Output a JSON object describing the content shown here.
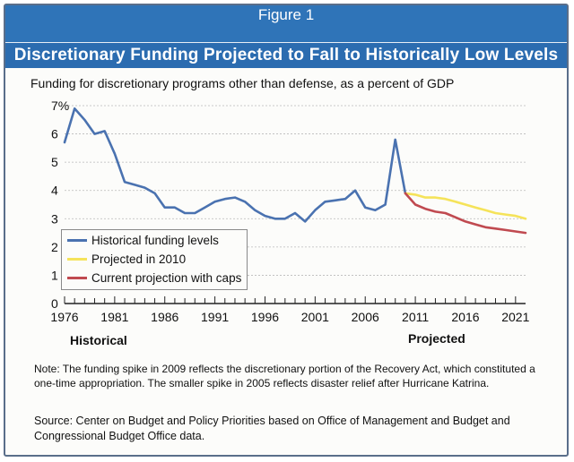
{
  "figure_label": "Figure 1",
  "title": "Discretionary Funding Projected to Fall to Historically Low Levels",
  "subtitle": "Funding for discretionary programs other than defense, as a percent of GDP",
  "historical_label": "Historical",
  "projected_label": "Projected",
  "note": "Note: The funding spike in 2009 reflects the discretionary portion of the Recovery Act, which constituted a one-time appropriation.  The smaller spike in 2005 reflects disaster relief after Hurricane Katrina.",
  "source": "Source: Center on Budget and Policy Priorities based on Office of Management and Budget and Congressional Budget Office data.",
  "chart_data": {
    "type": "line",
    "xlim": [
      1976,
      2022
    ],
    "ylim": [
      0,
      7
    ],
    "x_ticks": [
      1976,
      1981,
      1986,
      1991,
      1996,
      2001,
      2006,
      2011,
      2016,
      2021
    ],
    "y_ticks": [
      0,
      1,
      2,
      3,
      4,
      5,
      6,
      7
    ],
    "y_tick_labels": [
      "0",
      "1",
      "2",
      "3",
      "4",
      "5",
      "6",
      "7%"
    ],
    "grid": true,
    "legend_position": "bottom-left",
    "series": [
      {
        "name": "Historical funding levels",
        "color": "#4a72b0",
        "x": [
          1976,
          1977,
          1978,
          1979,
          1980,
          1981,
          1982,
          1983,
          1984,
          1985,
          1986,
          1987,
          1988,
          1989,
          1990,
          1991,
          1992,
          1993,
          1994,
          1995,
          1996,
          1997,
          1998,
          1999,
          2000,
          2001,
          2002,
          2003,
          2004,
          2005,
          2006,
          2007,
          2008,
          2009,
          2010
        ],
        "y": [
          5.7,
          6.9,
          6.5,
          6.0,
          6.1,
          5.3,
          4.3,
          4.2,
          4.1,
          3.9,
          3.4,
          3.4,
          3.2,
          3.2,
          3.4,
          3.6,
          3.7,
          3.75,
          3.6,
          3.3,
          3.1,
          3.0,
          3.0,
          3.2,
          2.9,
          3.3,
          3.6,
          3.65,
          3.7,
          4.0,
          3.4,
          3.3,
          3.5,
          5.8,
          3.9
        ]
      },
      {
        "name": "Projected in 2010",
        "color": "#f5e35a",
        "x": [
          2010,
          2011,
          2012,
          2013,
          2014,
          2015,
          2016,
          2017,
          2018,
          2019,
          2020,
          2021,
          2022
        ],
        "y": [
          3.9,
          3.85,
          3.75,
          3.75,
          3.7,
          3.6,
          3.5,
          3.4,
          3.3,
          3.2,
          3.15,
          3.1,
          3.0
        ]
      },
      {
        "name": "Current projection with caps",
        "color": "#c04a50",
        "x": [
          2010,
          2011,
          2012,
          2013,
          2014,
          2015,
          2016,
          2017,
          2018,
          2019,
          2020,
          2021,
          2022
        ],
        "y": [
          3.9,
          3.5,
          3.35,
          3.25,
          3.2,
          3.05,
          2.9,
          2.8,
          2.7,
          2.65,
          2.6,
          2.55,
          2.5
        ]
      }
    ]
  }
}
